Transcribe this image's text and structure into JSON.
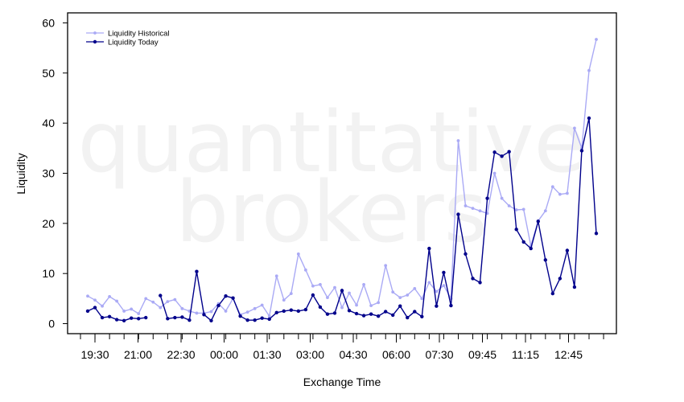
{
  "watermark": [
    "quantitative",
    "brokers"
  ],
  "colors": {
    "historical": "#aaaaf5",
    "today": "#00008b",
    "axis": "#000000"
  },
  "chart_data": {
    "type": "line",
    "xlabel": "Exchange Time",
    "ylabel": "Liquidity",
    "ylim": [
      -2,
      62
    ],
    "yticks": [
      0,
      10,
      20,
      30,
      40,
      50,
      60
    ],
    "xticks": [
      "19:30",
      "21:00",
      "22:30",
      "00:00",
      "01:30",
      "03:00",
      "04:30",
      "06:00",
      "07:30",
      "09:45",
      "11:15",
      "12:45"
    ],
    "legend": {
      "position": "top-left"
    },
    "series": [
      {
        "name": "Liquidity Historical",
        "values": [
          5.5,
          4.7,
          3.5,
          5.4,
          4.5,
          2.5,
          2.9,
          2.0,
          5.0,
          4.3,
          3.2,
          4.4,
          4.8,
          3.0,
          2.5,
          2.1,
          2.1,
          2.4,
          4.0,
          2.5,
          5.0,
          1.8,
          2.3,
          3.0,
          3.7,
          1.5,
          9.5,
          4.7,
          6.0,
          13.9,
          10.7,
          7.5,
          7.8,
          5.2,
          7.2,
          3.2,
          6.1,
          3.7,
          7.8,
          3.6,
          4.2,
          11.6,
          6.3,
          5.2,
          5.7,
          7.0,
          5.0,
          8.2,
          6.4,
          7.6,
          5.0,
          36.5,
          23.5,
          23.0,
          22.5,
          22.0,
          30.0,
          25.0,
          23.5,
          22.7,
          22.8,
          15.5,
          20.5,
          22.5,
          27.3,
          25.8,
          26.0,
          39.0,
          35.0,
          50.5,
          56.7
        ]
      },
      {
        "name": "Liquidity Today",
        "values": [
          2.5,
          3.2,
          1.2,
          1.4,
          0.8,
          0.6,
          1.1,
          1.0,
          1.2,
          null,
          5.6,
          1.0,
          1.2,
          1.3,
          0.7,
          10.4,
          1.8,
          0.6,
          3.6,
          5.5,
          5.1,
          1.5,
          0.7,
          0.7,
          1.1,
          0.9,
          2.2,
          2.5,
          2.7,
          2.5,
          2.8,
          5.7,
          3.3,
          1.9,
          2.1,
          6.6,
          2.6,
          2.0,
          1.6,
          1.9,
          1.5,
          2.4,
          1.7,
          3.5,
          1.2,
          2.4,
          1.4,
          15.0,
          3.5,
          10.2,
          3.6,
          21.8,
          13.9,
          9.0,
          8.2,
          25.0,
          34.2,
          33.4,
          34.3,
          18.8,
          16.3,
          15.0,
          20.4,
          12.7,
          6.0,
          9.0,
          14.6,
          7.3,
          34.5,
          41.0,
          18.0
        ]
      }
    ]
  }
}
